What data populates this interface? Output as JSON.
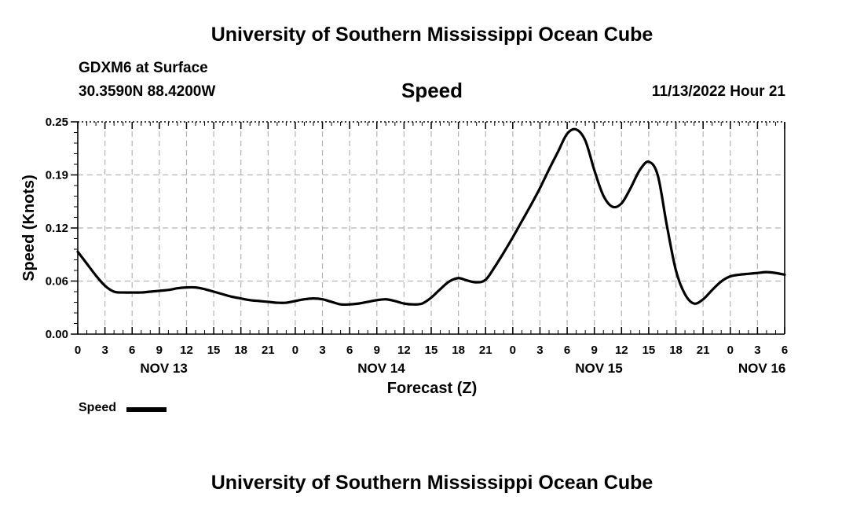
{
  "header": {
    "title_top": "University of Southern Mississippi Ocean Cube",
    "title_bottom": "University of Southern Mississippi Ocean Cube",
    "station": "GDXM6 at Surface",
    "coords": "30.3590N  88.4200W",
    "datetime": "11/13/2022 Hour 21"
  },
  "legend": {
    "label": "Speed"
  },
  "chart_data": {
    "type": "line",
    "title": "Speed",
    "xlabel": "Forecast (Z)",
    "ylabel": "Speed (Knots)",
    "xlim": [
      0,
      78
    ],
    "ylim": [
      0,
      0.25
    ],
    "grid": true,
    "yticks": [
      "0.00",
      "0.06",
      "0.12",
      "0.19",
      "0.25"
    ],
    "xtick_labels": [
      "0",
      "3",
      "6",
      "9",
      "12",
      "15",
      "18",
      "21",
      "0",
      "3",
      "6",
      "9",
      "12",
      "15",
      "18",
      "21",
      "0",
      "3",
      "6",
      "9",
      "12",
      "15",
      "18",
      "21",
      "0",
      "3",
      "6"
    ],
    "day_labels": [
      {
        "hour": 9.5,
        "label": "NOV 13"
      },
      {
        "hour": 33.5,
        "label": "NOV 14"
      },
      {
        "hour": 57.5,
        "label": "NOV 15"
      },
      {
        "hour": 75.5,
        "label": "NOV 16"
      }
    ],
    "series": [
      {
        "name": "Speed",
        "color": "#000000",
        "x": [
          0,
          1,
          2,
          3,
          4,
          5,
          6,
          7,
          8,
          9,
          10,
          11,
          12,
          13,
          14,
          15,
          16,
          17,
          18,
          19,
          20,
          21,
          22,
          23,
          24,
          25,
          26,
          27,
          28,
          29,
          30,
          31,
          32,
          33,
          34,
          35,
          36,
          37,
          38,
          39,
          40,
          41,
          42,
          43,
          44,
          45,
          46,
          47,
          48,
          49,
          50,
          51,
          52,
          53,
          54,
          55,
          56,
          57,
          58,
          59,
          60,
          61,
          62,
          63,
          64,
          65,
          66,
          67,
          68,
          69,
          70,
          71,
          72,
          73,
          74,
          75,
          76,
          77,
          78
        ],
        "values": [
          0.097,
          0.083,
          0.069,
          0.057,
          0.05,
          0.049,
          0.049,
          0.049,
          0.05,
          0.051,
          0.052,
          0.054,
          0.055,
          0.055,
          0.053,
          0.05,
          0.047,
          0.044,
          0.042,
          0.04,
          0.039,
          0.038,
          0.037,
          0.037,
          0.039,
          0.041,
          0.042,
          0.041,
          0.038,
          0.035,
          0.035,
          0.036,
          0.038,
          0.04,
          0.041,
          0.039,
          0.036,
          0.035,
          0.036,
          0.043,
          0.053,
          0.062,
          0.066,
          0.063,
          0.061,
          0.064,
          0.079,
          0.096,
          0.114,
          0.133,
          0.152,
          0.172,
          0.194,
          0.215,
          0.236,
          0.241,
          0.228,
          0.193,
          0.163,
          0.15,
          0.154,
          0.172,
          0.193,
          0.203,
          0.187,
          0.128,
          0.075,
          0.047,
          0.036,
          0.041,
          0.052,
          0.062,
          0.068,
          0.07,
          0.071,
          0.072,
          0.073,
          0.072,
          0.07
        ]
      }
    ]
  }
}
